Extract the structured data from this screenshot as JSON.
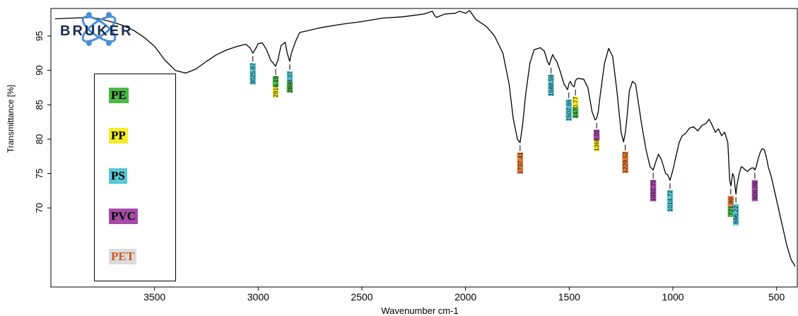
{
  "logo": {
    "text": "BRUKER"
  },
  "legend": [
    {
      "label": "PE",
      "color": "#4db848",
      "text_color": "#000000"
    },
    {
      "label": "PP",
      "color": "#f5ec2a",
      "text_color": "#000000"
    },
    {
      "label": "PS",
      "color": "#58c7d6",
      "text_color": "#000000"
    },
    {
      "label": "PVC",
      "color": "#a64ca8",
      "text_color": "#000000"
    },
    {
      "label": "PET",
      "color": "#dcdcdc",
      "text_color": "#c8581e"
    }
  ],
  "chart_data": {
    "type": "line",
    "xlabel": "Wavenumber cm-1",
    "ylabel": "Transmittance [%]",
    "xlim": [
      4000,
      400
    ],
    "x_reversed": true,
    "ylim": [
      58.5,
      99
    ],
    "x_ticks": [
      3500,
      3000,
      2500,
      2000,
      1500,
      1000,
      500
    ],
    "y_ticks": [
      95,
      90,
      85,
      80,
      75,
      70
    ],
    "grid": false,
    "series": [
      {
        "x": [
          3980,
          3900,
          3800,
          3750,
          3700,
          3650,
          3600,
          3550,
          3500,
          3450,
          3400,
          3350,
          3300,
          3250,
          3200,
          3150,
          3100,
          3060,
          3040,
          3026,
          3015,
          3000,
          2980,
          2960,
          2940,
          2916,
          2905,
          2890,
          2870,
          2860,
          2848,
          2840,
          2820,
          2800,
          2700,
          2600,
          2500,
          2400,
          2300,
          2200,
          2160,
          2150,
          2140,
          2100,
          2050,
          2030,
          2000,
          1980,
          1950,
          1900,
          1860,
          1820,
          1790,
          1770,
          1750,
          1737,
          1725,
          1710,
          1690,
          1670,
          1640,
          1620,
          1605,
          1596,
          1588,
          1580,
          1570,
          1560,
          1545,
          1525,
          1508,
          1502,
          1495,
          1485,
          1476,
          1470,
          1462,
          1450,
          1430,
          1410,
          1390,
          1375,
          1368,
          1360,
          1350,
          1330,
          1310,
          1290,
          1270,
          1250,
          1238,
          1230,
          1222,
          1210,
          1195,
          1180,
          1165,
          1150,
          1130,
          1110,
          1095,
          1085,
          1070,
          1055,
          1045,
          1035,
          1025,
          1014,
          1000,
          985,
          970,
          955,
          940,
          920,
          900,
          880,
          860,
          840,
          825,
          810,
          795,
          780,
          765,
          750,
          735,
          726,
          720,
          712,
          705,
          698,
          696,
          690,
          680,
          670,
          660,
          650,
          640,
          630,
          620,
          610,
          605,
          598,
          590,
          580,
          570,
          560,
          550,
          540,
          525,
          510,
          495,
          480,
          465,
          450,
          430,
          410
        ],
        "y": [
          97.5,
          97.6,
          97.7,
          97.4,
          97.0,
          96.5,
          95.8,
          94.8,
          93.5,
          91.5,
          90.0,
          89.6,
          90.2,
          91.3,
          92.3,
          93.0,
          93.5,
          93.8,
          93.3,
          92.5,
          93.0,
          93.9,
          94.0,
          93.0,
          91.5,
          90.6,
          91.5,
          93.6,
          94.1,
          92.5,
          91.3,
          92.5,
          94.2,
          95.5,
          96.2,
          96.7,
          97.1,
          97.6,
          97.8,
          98.2,
          98.6,
          98.0,
          97.7,
          98.2,
          98.3,
          98.6,
          98.3,
          98.7,
          97.4,
          96.4,
          95.0,
          92.5,
          88.0,
          83.0,
          80.0,
          79.5,
          82.0,
          86.5,
          91.0,
          93.0,
          93.3,
          92.8,
          91.3,
          90.8,
          91.6,
          92.3,
          91.7,
          91.3,
          90.0,
          88.0,
          87.2,
          88.0,
          88.4,
          87.8,
          87.6,
          88.5,
          88.8,
          88.8,
          88.7,
          87.5,
          84.0,
          82.8,
          83.0,
          84.0,
          86.5,
          91.0,
          93.2,
          92.0,
          87.0,
          81.0,
          79.6,
          80.8,
          83.0,
          87.0,
          88.4,
          88.0,
          85.0,
          82.0,
          78.5,
          76.0,
          75.5,
          76.5,
          77.8,
          77.0,
          76.0,
          75.0,
          74.8,
          74.0,
          75.5,
          77.5,
          79.5,
          80.5,
          80.8,
          81.6,
          81.8,
          81.2,
          82.0,
          82.3,
          82.9,
          82.0,
          81.0,
          81.5,
          80.5,
          81.0,
          79.5,
          74.0,
          73.2,
          75.0,
          74.5,
          72.5,
          72.0,
          73.5,
          75.0,
          76.0,
          75.8,
          75.5,
          75.3,
          75.6,
          75.8,
          75.8,
          75.5,
          76.0,
          77.0,
          78.0,
          78.6,
          78.5,
          77.5,
          76.0,
          74.5,
          72.5,
          70.5,
          68.5,
          66.5,
          64.5,
          62.5,
          61.5
        ]
      }
    ],
    "peaks": [
      {
        "x": 3026,
        "y": 92.5,
        "label": "3025.87",
        "color": "#58c7d6"
      },
      {
        "x": 2916,
        "y": 90.6,
        "label": "2916.19",
        "color": "#f5ec2a",
        "color2": "#4db848"
      },
      {
        "x": 2848,
        "y": 91.3,
        "label": "2848.07",
        "color": "#4db848",
        "color2": "#58c7d6"
      },
      {
        "x": 1737,
        "y": 79.5,
        "label": "1737.41",
        "color": "#e8823a"
      },
      {
        "x": 1588,
        "y": 90.8,
        "label": "1588.59",
        "color": "#58c7d6"
      },
      {
        "x": 1502,
        "y": 87.2,
        "label": "1502.65",
        "color": "#58c7d6"
      },
      {
        "x": 1470,
        "y": 87.6,
        "label": "1470.77",
        "color": "#4db848",
        "color2": "#f5ec2a"
      },
      {
        "x": 1368,
        "y": 82.8,
        "label": "1368.03",
        "color": "#f5ec2a",
        "color2": "#a64ca8"
      },
      {
        "x": 1230,
        "y": 79.6,
        "label": "1229.52",
        "color": "#e8823a"
      },
      {
        "x": 1095,
        "y": 75.5,
        "label": "1092.70",
        "color": "#a64ca8"
      },
      {
        "x": 1014,
        "y": 74.0,
        "label": "1014.72",
        "color": "#58c7d6"
      },
      {
        "x": 721,
        "y": 73.2,
        "label": "721.99",
        "color": "#4db848",
        "color2": "#e8823a"
      },
      {
        "x": 696,
        "y": 72.0,
        "label": "696.22",
        "color": "#58c7d6"
      },
      {
        "x": 605,
        "y": 75.5,
        "label": "606.06",
        "color": "#a64ca8"
      }
    ]
  }
}
